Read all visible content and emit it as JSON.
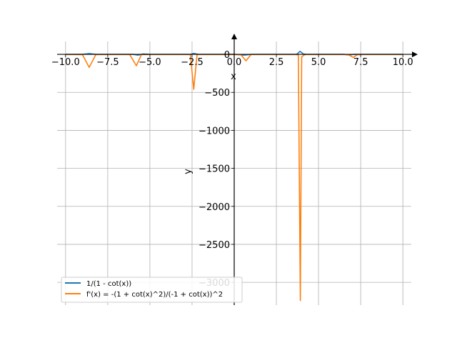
{
  "chart_data": {
    "type": "line",
    "xlabel": "x",
    "ylabel": "y",
    "xlim": [
      -10.5,
      10.5
    ],
    "ylim": [
      -3300,
      170
    ],
    "grid": true,
    "legend_position": "lower-left",
    "x_ticks": [
      {
        "value": -10.0,
        "label": "−10.0"
      },
      {
        "value": -7.5,
        "label": "−7.5"
      },
      {
        "value": -5.0,
        "label": "−5.0"
      },
      {
        "value": -2.5,
        "label": "−2.5"
      },
      {
        "value": 0.0,
        "label": "0.0"
      },
      {
        "value": 2.5,
        "label": "2.5"
      },
      {
        "value": 5.0,
        "label": "5.0"
      },
      {
        "value": 7.5,
        "label": "7.5"
      },
      {
        "value": 10.0,
        "label": "10.0"
      }
    ],
    "y_ticks": [
      {
        "value": 0,
        "label": "0"
      },
      {
        "value": -500,
        "label": "−500"
      },
      {
        "value": -1000,
        "label": "−1000"
      },
      {
        "value": -1500,
        "label": "−1500"
      },
      {
        "value": -2000,
        "label": "−2000"
      },
      {
        "value": -2500,
        "label": "−2500"
      },
      {
        "value": -3000,
        "label": "−3000"
      }
    ],
    "series": [
      {
        "name": "1/(1 - cot(x))",
        "color": "#1f77b4",
        "x": [
          -10.0,
          -9.0,
          -8.6,
          -8.2,
          -7.5,
          -6.0,
          -5.7,
          -5.4,
          -5.0,
          -3.0,
          -2.6,
          -2.4,
          -2.1,
          -1.0,
          0.0,
          0.6,
          0.8,
          1.0,
          1.2,
          3.5,
          3.7,
          3.9,
          4.1,
          4.3,
          6.5,
          6.8,
          7.1,
          7.4,
          8.0,
          10.0
        ],
        "y": [
          0,
          0,
          10,
          0,
          0,
          0,
          -10,
          5,
          0,
          0,
          0,
          12,
          0,
          0,
          0,
          -10,
          -5,
          0,
          0,
          0,
          0,
          40,
          5,
          0,
          0,
          -8,
          0,
          0,
          0,
          0
        ]
      },
      {
        "name": "f'(x) = -(1 + cot(x)^2)/(-1 + cot(x))^2",
        "color": "#ff7f0e",
        "x": [
          -10.0,
          -9.4,
          -9.0,
          -8.6,
          -8.2,
          -7.5,
          -6.2,
          -5.8,
          -5.5,
          -5.0,
          -2.6,
          -2.4,
          -2.2,
          -1.5,
          0.0,
          0.4,
          0.7,
          1.0,
          1.2,
          3.6,
          3.8,
          3.92,
          4.0,
          4.2,
          4.5,
          6.6,
          6.8,
          7.05,
          7.3,
          7.6,
          10.0
        ],
        "y": [
          -2,
          -2,
          -3,
          -170,
          -2,
          -2,
          -2,
          -150,
          -2,
          -2,
          -2,
          -460,
          -2,
          -2,
          -2,
          -5,
          -85,
          -2,
          -2,
          -2,
          -5,
          -3240,
          -30,
          -2,
          -2,
          -2,
          -8,
          -40,
          -5,
          -2,
          -2
        ]
      }
    ]
  }
}
